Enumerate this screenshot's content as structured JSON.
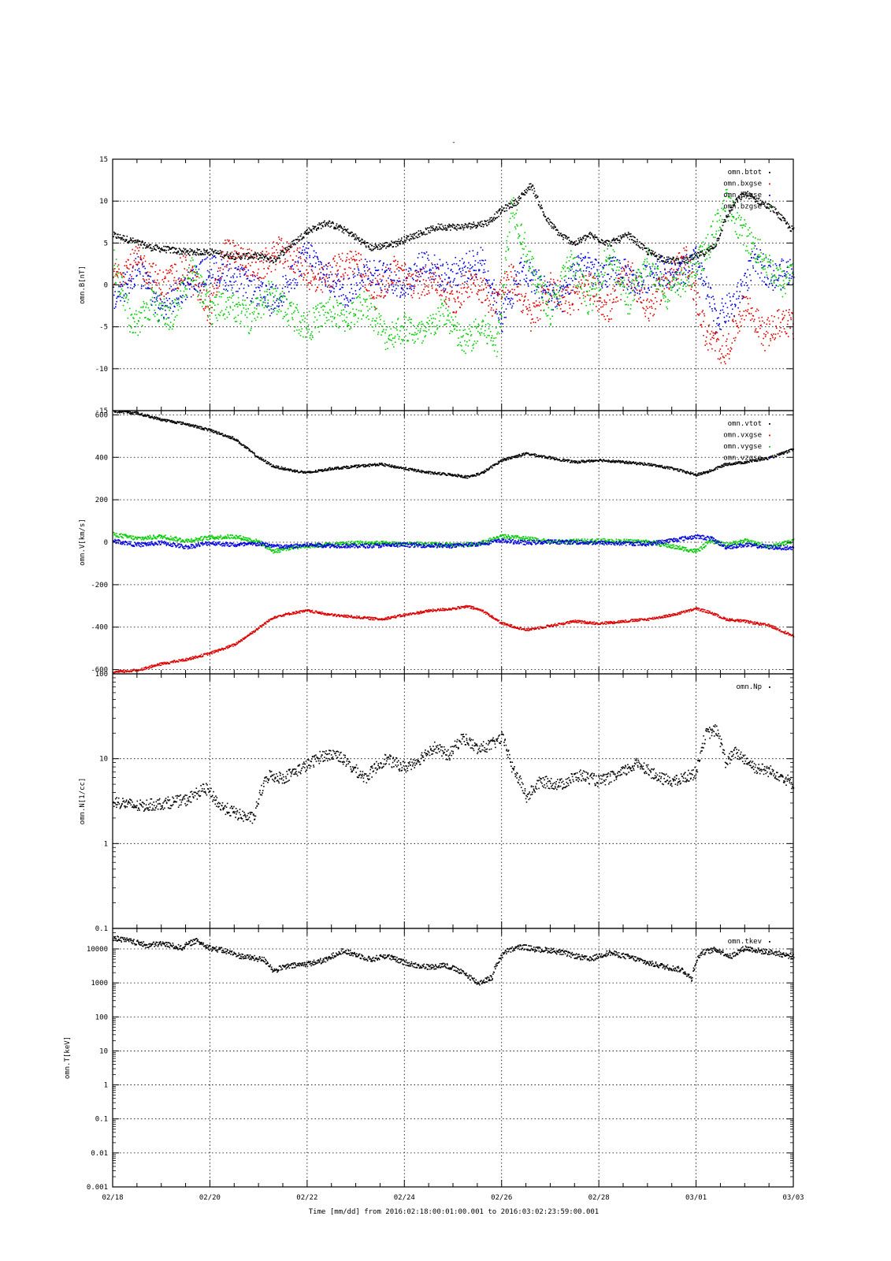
{
  "figure": {
    "title": "-",
    "xlabel": "Time [mm/dd]  from 2016:02:18:00:01:00.001  to  2016:03:02:23:59:00.001",
    "x_ticks": [
      "02/18",
      "02/20",
      "02/22",
      "02/24",
      "02/26",
      "02/28",
      "03/01",
      "03/03"
    ],
    "x_range_days": [
      0,
      14
    ]
  },
  "chart_data": [
    {
      "type": "scatter",
      "ylabel": "omn.B[nT]",
      "yscale": "linear",
      "ylim": [
        -15,
        15
      ],
      "y_ticks": [
        15,
        10,
        5,
        0,
        -5,
        -10,
        -15
      ],
      "y_tick_labels": [
        "15",
        "10",
        "5",
        "0",
        "-5",
        "-10",
        "-15"
      ],
      "grid": true,
      "legend_position": "top-right",
      "series": [
        {
          "name": "omn.btot",
          "color": "#000000",
          "noise": 0.4,
          "x": [
            0,
            0.3,
            0.8,
            1.5,
            2,
            2.5,
            3,
            3.3,
            3.7,
            4,
            4.4,
            4.8,
            5.3,
            5.8,
            6.2,
            6.7,
            7.2,
            7.7,
            8,
            8.3,
            8.6,
            8.9,
            9.2,
            9.5,
            9.8,
            10.2,
            10.6,
            11,
            11.4,
            11.8,
            12.2,
            12.4,
            12.6,
            12.8,
            13,
            13.3,
            13.6,
            13.9,
            14
          ],
          "y": [
            6,
            5.5,
            4.5,
            4,
            4,
            3.5,
            3.5,
            3,
            5,
            6.5,
            7.5,
            6.5,
            4.5,
            5,
            6,
            7,
            7,
            7.5,
            9,
            10,
            12,
            8,
            6,
            5,
            6,
            5,
            6,
            4,
            3,
            3,
            4,
            5,
            8,
            10,
            11,
            10,
            9,
            7,
            6.5
          ]
        },
        {
          "name": "omn.bxgse",
          "color": "#dd0000",
          "noise": 1.8,
          "x": [
            0,
            0.5,
            1,
            1.5,
            2,
            2.3,
            2.7,
            3,
            3.4,
            3.8,
            4.2,
            4.6,
            5,
            5.4,
            5.8,
            6.2,
            6.6,
            7,
            7.4,
            7.8,
            8.2,
            8.6,
            9,
            9.4,
            9.8,
            10.2,
            10.6,
            11,
            11.4,
            11.8,
            12.2,
            12.6,
            13,
            13.4,
            13.8,
            14
          ],
          "y": [
            1,
            3,
            0,
            2,
            -3,
            4,
            3,
            2,
            4,
            3,
            0,
            2,
            3,
            -1,
            2,
            0,
            1,
            -2,
            1,
            -2,
            1,
            -4,
            0,
            -2,
            0,
            -3,
            2,
            -3,
            1,
            3,
            -6,
            -8,
            -2,
            -6,
            -4,
            -5
          ]
        },
        {
          "name": "omn.bygse",
          "color": "#0000dd",
          "noise": 1.8,
          "x": [
            0,
            0.5,
            1,
            1.5,
            2,
            2.4,
            2.8,
            3.2,
            3.6,
            4,
            4.4,
            4.8,
            5.2,
            5.6,
            6,
            6.4,
            6.8,
            7.2,
            7.6,
            8,
            8.4,
            8.8,
            9.2,
            9.6,
            10,
            10.4,
            10.8,
            11.2,
            11.6,
            12,
            12.4,
            12.8,
            13.2,
            13.6,
            14
          ],
          "y": [
            -2,
            2,
            -3,
            0,
            2,
            1,
            0,
            -2,
            0,
            4,
            1,
            -1,
            2,
            1,
            0,
            3,
            1,
            2,
            3,
            -4,
            2,
            0,
            -2,
            3,
            1,
            2,
            0,
            2,
            1,
            3,
            -4,
            -2,
            3,
            1,
            2
          ]
        },
        {
          "name": "omn.bzgse",
          "color": "#00cc00",
          "noise": 1.8,
          "x": [
            0,
            0.4,
            0.8,
            1.2,
            1.6,
            2,
            2.4,
            2.8,
            3.2,
            3.6,
            4,
            4.4,
            4.8,
            5.2,
            5.6,
            6,
            6.4,
            6.8,
            7.2,
            7.6,
            7.9,
            8.2,
            8.6,
            9,
            9.4,
            9.8,
            10.2,
            10.6,
            11,
            11.4,
            11.8,
            12.2,
            12.6,
            13,
            13.4,
            13.8,
            14
          ],
          "y": [
            3,
            -5,
            -2,
            -4,
            2,
            -3,
            -2,
            -4,
            -1,
            -3,
            -5,
            -3,
            -4,
            -2,
            -6,
            -5,
            -6,
            -3,
            -7,
            -5,
            -7,
            10,
            2,
            -3,
            3,
            -2,
            4,
            -2,
            3,
            -1,
            1,
            4,
            10,
            6,
            3,
            0,
            3
          ]
        }
      ]
    },
    {
      "type": "scatter",
      "ylabel": "omn.V[km/s]",
      "yscale": "linear",
      "ylim": [
        -620,
        620
      ],
      "y_ticks": [
        600,
        400,
        200,
        0,
        -200,
        -400,
        -600
      ],
      "y_tick_labels": [
        "600",
        "400",
        "200",
        "0",
        "-200",
        "-400",
        "-600"
      ],
      "grid": true,
      "legend_position": "top-right",
      "series": [
        {
          "name": "omn.vtot",
          "color": "#000000",
          "noise": 6,
          "x": [
            0,
            0.5,
            1,
            1.5,
            2,
            2.5,
            3,
            3.3,
            3.7,
            4,
            4.5,
            5,
            5.5,
            6,
            6.5,
            7,
            7.3,
            7.6,
            8,
            8.5,
            9,
            9.5,
            10,
            10.5,
            11,
            11.5,
            12,
            12.3,
            12.6,
            13,
            13.5,
            14
          ],
          "y": [
            620,
            610,
            580,
            560,
            530,
            490,
            400,
            360,
            340,
            330,
            350,
            360,
            370,
            350,
            330,
            320,
            310,
            330,
            390,
            420,
            400,
            380,
            390,
            380,
            370,
            350,
            320,
            340,
            370,
            380,
            400,
            440
          ]
        },
        {
          "name": "omn.vxgse",
          "color": "#dd0000",
          "noise": 6,
          "x": [
            0,
            0.5,
            1,
            1.5,
            2,
            2.5,
            3,
            3.3,
            3.7,
            4,
            4.5,
            5,
            5.5,
            6,
            6.5,
            7,
            7.3,
            7.6,
            8,
            8.5,
            9,
            9.5,
            10,
            10.5,
            11,
            11.5,
            12,
            12.3,
            12.6,
            13,
            13.5,
            14
          ],
          "y": [
            -610,
            -600,
            -570,
            -550,
            -520,
            -480,
            -400,
            -350,
            -330,
            -320,
            -340,
            -350,
            -360,
            -340,
            -320,
            -310,
            -300,
            -320,
            -380,
            -410,
            -390,
            -370,
            -380,
            -370,
            -360,
            -340,
            -310,
            -330,
            -360,
            -370,
            -390,
            -440
          ]
        },
        {
          "name": "omn.vygse",
          "color": "#00cc00",
          "noise": 10,
          "x": [
            0,
            0.5,
            1,
            1.5,
            2,
            2.5,
            3,
            3.3,
            3.7,
            4,
            5,
            6,
            7,
            7.5,
            8,
            8.5,
            9,
            10,
            11,
            12,
            12.3,
            12.6,
            13,
            13.5,
            14
          ],
          "y": [
            40,
            20,
            30,
            10,
            25,
            30,
            5,
            -40,
            -20,
            -15,
            0,
            -5,
            -10,
            -5,
            30,
            20,
            5,
            10,
            5,
            -40,
            10,
            -10,
            10,
            -20,
            10
          ]
        },
        {
          "name": "omn.vzgse",
          "color": "#0000dd",
          "noise": 10,
          "x": [
            0,
            0.5,
            1,
            1.5,
            2,
            2.5,
            3,
            3.5,
            4,
            5,
            6,
            7,
            7.5,
            8,
            8.5,
            9,
            10,
            11,
            12,
            12.3,
            12.6,
            13,
            13.5,
            14
          ],
          "y": [
            10,
            -10,
            0,
            -20,
            0,
            -10,
            -5,
            -20,
            -10,
            -15,
            -10,
            -15,
            -5,
            10,
            0,
            5,
            0,
            -5,
            30,
            20,
            -20,
            -10,
            -20,
            -25
          ]
        }
      ]
    },
    {
      "type": "scatter",
      "ylabel": "omn.N[1/cc]",
      "yscale": "log",
      "ylim": [
        0.1,
        100
      ],
      "y_ticks": [
        100,
        10,
        1,
        0.1
      ],
      "y_tick_labels": [
        "100",
        "10",
        "1",
        "0.1"
      ],
      "grid": true,
      "legend_position": "top-right",
      "series": [
        {
          "name": "omn.Np",
          "color": "#000000",
          "noise": 0.07,
          "log": true,
          "x": [
            0,
            0.5,
            1,
            1.5,
            1.9,
            2.2,
            2.6,
            2.9,
            3.2,
            3.5,
            4,
            4.3,
            4.6,
            4.9,
            5.2,
            5.6,
            6,
            6.3,
            6.6,
            6.9,
            7.2,
            7.5,
            7.8,
            8,
            8.2,
            8.5,
            8.8,
            9.2,
            9.6,
            10,
            10.4,
            10.8,
            11.2,
            11.6,
            12,
            12.2,
            12.4,
            12.6,
            12.8,
            13.2,
            13.6,
            14
          ],
          "y": [
            3.2,
            2.8,
            3,
            3.3,
            4.5,
            2.8,
            2.2,
            2,
            6.5,
            6,
            8.5,
            11,
            11.5,
            8,
            6,
            10,
            8,
            10,
            14,
            11,
            18,
            13,
            15,
            18,
            8,
            3.5,
            5.5,
            5,
            6.5,
            5.5,
            6.5,
            9,
            6,
            5.5,
            7,
            20,
            22,
            9,
            12,
            8,
            7,
            5
          ]
        }
      ]
    },
    {
      "type": "scatter",
      "ylabel": "omn.T[keV]",
      "yscale": "log",
      "ylim": [
        0.001,
        40000
      ],
      "y_ticks": [
        10000,
        1000,
        100,
        10,
        1,
        0.1,
        0.01,
        0.001
      ],
      "y_tick_labels": [
        "10000",
        "1000",
        "100",
        "10",
        "1",
        "0.1",
        "0.01",
        "0.001"
      ],
      "grid": true,
      "legend_position": "top-right",
      "series": [
        {
          "name": "omn.tkev",
          "color": "#000000",
          "noise": 0.08,
          "log": true,
          "x": [
            0,
            0.3,
            0.7,
            1,
            1.4,
            1.7,
            2,
            2.3,
            2.6,
            2.9,
            3.1,
            3.3,
            3.5,
            3.8,
            4.1,
            4.4,
            4.7,
            5,
            5.3,
            5.6,
            5.9,
            6.2,
            6.5,
            6.8,
            7.2,
            7.5,
            7.8,
            8.1,
            8.4,
            8.7,
            9,
            9.4,
            9.8,
            10.2,
            10.6,
            11,
            11.4,
            11.7,
            11.9,
            12.1,
            12.4,
            12.7,
            13,
            13.3,
            13.6,
            14
          ],
          "y": [
            22000,
            18000,
            13000,
            15000,
            11000,
            18000,
            11000,
            9000,
            6500,
            5500,
            5000,
            2300,
            3000,
            3500,
            4000,
            5000,
            9000,
            7000,
            5000,
            6500,
            4500,
            3500,
            3000,
            3500,
            2000,
            1000,
            1500,
            9000,
            12000,
            10000,
            9500,
            7000,
            5000,
            8000,
            6000,
            4000,
            3000,
            2500,
            1300,
            8000,
            10000,
            6000,
            11000,
            9000,
            8000,
            6000
          ]
        }
      ]
    }
  ]
}
